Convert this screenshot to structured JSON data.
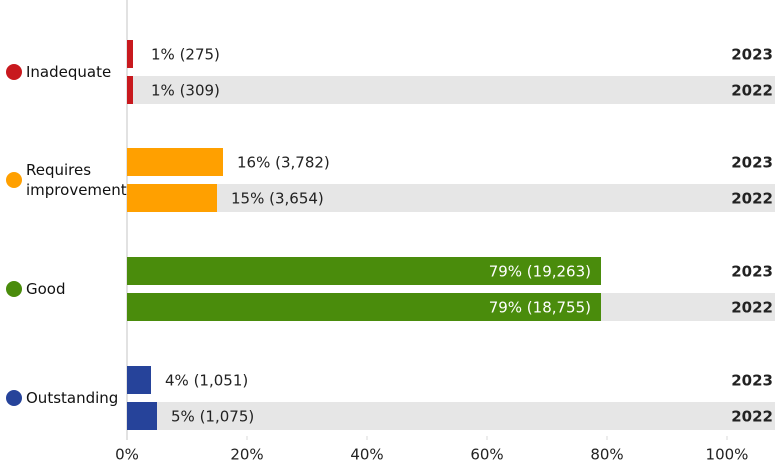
{
  "chart_data": {
    "type": "bar",
    "orientation": "horizontal",
    "categories": [
      "Inadequate",
      "Requires improvement",
      "Good",
      "Outstanding"
    ],
    "category_colors": [
      "#c8191e",
      "#ffa000",
      "#4a8c0c",
      "#26439a"
    ],
    "series": [
      {
        "name": "2023",
        "values": [
          1,
          16,
          79,
          4
        ],
        "value_labels": [
          "1% (275)",
          "16% (3,782)",
          "79% (19,263)",
          "4% (1,051)"
        ]
      },
      {
        "name": "2022",
        "values": [
          1,
          15,
          79,
          5
        ],
        "value_labels": [
          "1% (309)",
          "15% (3,654)",
          "79% (18,755)",
          "5% (1,075)"
        ]
      }
    ],
    "xlim": [
      0,
      100
    ],
    "xticks": [
      {
        "value": 0,
        "label": "0%"
      },
      {
        "value": 20,
        "label": "20%"
      },
      {
        "value": 40,
        "label": "40%"
      },
      {
        "value": 60,
        "label": "60%"
      },
      {
        "value": 80,
        "label": "80%"
      },
      {
        "value": 100,
        "label": "100%"
      }
    ]
  }
}
